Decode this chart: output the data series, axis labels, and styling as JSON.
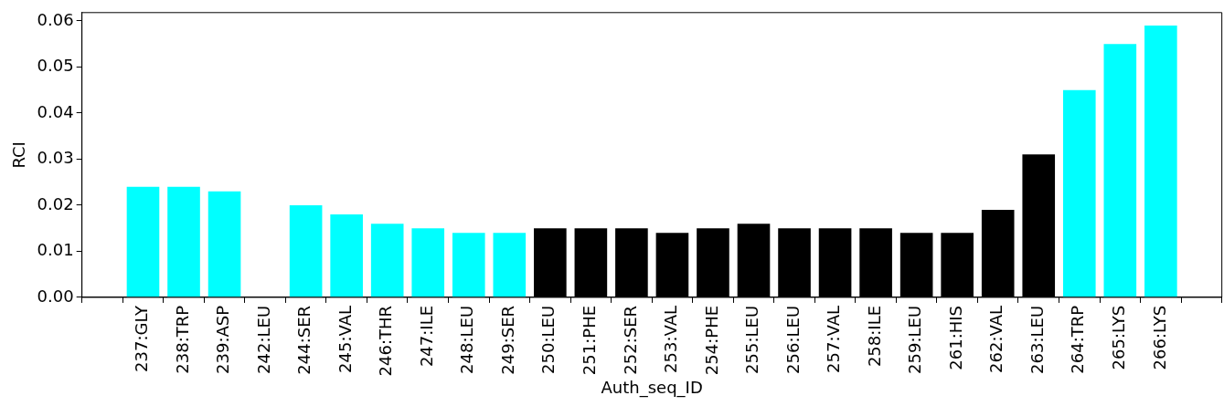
{
  "chart_data": {
    "type": "bar",
    "xlabel": "Auth_seq_ID",
    "ylabel": "RCI",
    "categories": [
      null,
      "237:GLY",
      "238:TRP",
      "239:ASP",
      "242:LEU",
      "244:SER",
      "245:VAL",
      "246:THR",
      "247:ILE",
      "248:LEU",
      "249:SER",
      "250:LEU",
      "251:PHE",
      "252:SER",
      "253:VAL",
      "254:PHE",
      "255:LEU",
      "256:LEU",
      "257:VAL",
      "258:ILE",
      "259:LEU",
      "261:HIS",
      "262:VAL",
      "263:LEU",
      "264:TRP",
      "265:LYS",
      "266:LYS",
      null
    ],
    "values": [
      null,
      0.024,
      0.024,
      0.023,
      null,
      0.02,
      0.018,
      0.016,
      0.015,
      0.014,
      0.014,
      0.015,
      0.015,
      0.015,
      0.014,
      0.015,
      0.016,
      0.015,
      0.015,
      0.015,
      0.014,
      0.014,
      0.019,
      0.031,
      0.045,
      0.055,
      0.059,
      null
    ],
    "colors": [
      "#00ffff",
      "#00ffff",
      "#00ffff",
      "#00ffff",
      "#00ffff",
      "#00ffff",
      "#00ffff",
      "#00ffff",
      "#00ffff",
      "#00ffff",
      "#00ffff",
      "#000000",
      "#000000",
      "#000000",
      "#000000",
      "#000000",
      "#000000",
      "#000000",
      "#000000",
      "#000000",
      "#000000",
      "#000000",
      "#000000",
      "#000000",
      "#00ffff",
      "#00ffff",
      "#00ffff",
      "#00ffff"
    ],
    "ylim": [
      0,
      0.0618
    ],
    "yticks": [
      {
        "value": 0,
        "label": "0.00"
      },
      {
        "value": 0.01,
        "label": "0.01"
      },
      {
        "value": 0.02,
        "label": "0.02"
      },
      {
        "value": 0.03,
        "label": "0.03"
      },
      {
        "value": 0.04,
        "label": "0.04"
      },
      {
        "value": 0.05,
        "label": "0.05"
      },
      {
        "value": 0.06,
        "label": "0.06"
      }
    ],
    "grid": false,
    "legend": false
  }
}
